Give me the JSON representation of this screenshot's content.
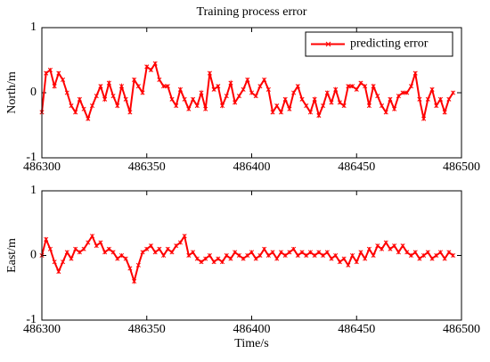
{
  "chart_data": [
    {
      "type": "line",
      "title": "Training process error",
      "ylabel": "North/m",
      "legend": "northeast",
      "xlim": [
        486300,
        486500
      ],
      "xticks": [
        486300,
        486350,
        486400,
        486450,
        486500
      ],
      "ylim": [
        -1,
        1
      ],
      "yticks": [
        -1,
        0,
        1
      ],
      "x": [
        486300,
        486302,
        486304,
        486306,
        486308,
        486310,
        486312,
        486314,
        486316,
        486318,
        486320,
        486322,
        486324,
        486326,
        486328,
        486330,
        486332,
        486334,
        486336,
        486338,
        486340,
        486342,
        486344,
        486346,
        486348,
        486350,
        486352,
        486354,
        486356,
        486358,
        486360,
        486362,
        486364,
        486366,
        486368,
        486370,
        486372,
        486374,
        486376,
        486378,
        486380,
        486382,
        486384,
        486386,
        486388,
        486390,
        486392,
        486394,
        486396,
        486398,
        486400,
        486402,
        486404,
        486406,
        486408,
        486410,
        486412,
        486414,
        486416,
        486418,
        486420,
        486422,
        486424,
        486426,
        486428,
        486430,
        486432,
        486434,
        486436,
        486438,
        486440,
        486442,
        486444,
        486446,
        486448,
        486450,
        486452,
        486454,
        486456,
        486458,
        486460,
        486462,
        486464,
        486466,
        486468,
        486470,
        486472,
        486474,
        486476,
        486478,
        486480,
        486482,
        486484,
        486486,
        486488,
        486490,
        486492,
        486494,
        486496
      ],
      "series": [
        {
          "name": "predicting error",
          "color": "#ff0000",
          "values": [
            -0.3,
            0.3,
            0.35,
            0.1,
            0.3,
            0.2,
            0.0,
            -0.2,
            -0.3,
            -0.1,
            -0.25,
            -0.4,
            -0.2,
            -0.05,
            0.1,
            -0.1,
            0.15,
            -0.05,
            -0.2,
            0.1,
            -0.1,
            -0.3,
            0.2,
            0.1,
            0.0,
            0.4,
            0.35,
            0.45,
            0.2,
            0.1,
            0.1,
            -0.1,
            -0.2,
            0.05,
            -0.1,
            -0.25,
            -0.1,
            -0.2,
            0.0,
            -0.25,
            0.3,
            0.05,
            0.1,
            -0.2,
            -0.05,
            0.15,
            -0.15,
            -0.05,
            0.05,
            0.2,
            0.0,
            -0.05,
            0.1,
            0.2,
            0.05,
            -0.3,
            -0.2,
            -0.3,
            -0.1,
            -0.25,
            0.0,
            0.1,
            -0.1,
            -0.2,
            -0.3,
            -0.1,
            -0.35,
            -0.2,
            0.0,
            -0.15,
            0.05,
            -0.15,
            -0.2,
            0.1,
            0.1,
            0.05,
            0.15,
            0.1,
            -0.2,
            0.1,
            -0.05,
            -0.2,
            -0.3,
            -0.1,
            -0.25,
            -0.05,
            0.0,
            0.0,
            0.1,
            0.3,
            -0.1,
            -0.4,
            -0.1,
            0.05,
            -0.2,
            -0.1,
            -0.3,
            -0.1,
            0.0
          ]
        }
      ]
    },
    {
      "type": "line",
      "ylabel": "East/m",
      "xlabel": "Time/s",
      "xlim": [
        486300,
        486500
      ],
      "xticks": [
        486300,
        486350,
        486400,
        486450,
        486500
      ],
      "ylim": [
        -1,
        1
      ],
      "yticks": [
        -1,
        0,
        1
      ],
      "x": [
        486300,
        486302,
        486304,
        486306,
        486308,
        486310,
        486312,
        486314,
        486316,
        486318,
        486320,
        486322,
        486324,
        486326,
        486328,
        486330,
        486332,
        486334,
        486336,
        486338,
        486340,
        486342,
        486344,
        486346,
        486348,
        486350,
        486352,
        486354,
        486356,
        486358,
        486360,
        486362,
        486364,
        486366,
        486368,
        486370,
        486372,
        486374,
        486376,
        486378,
        486380,
        486382,
        486384,
        486386,
        486388,
        486390,
        486392,
        486394,
        486396,
        486398,
        486400,
        486402,
        486404,
        486406,
        486408,
        486410,
        486412,
        486414,
        486416,
        486418,
        486420,
        486422,
        486424,
        486426,
        486428,
        486430,
        486432,
        486434,
        486436,
        486438,
        486440,
        486442,
        486444,
        486446,
        486448,
        486450,
        486452,
        486454,
        486456,
        486458,
        486460,
        486462,
        486464,
        486466,
        486468,
        486470,
        486472,
        486474,
        486476,
        486478,
        486480,
        486482,
        486484,
        486486,
        486488,
        486490,
        486492,
        486494,
        486496
      ],
      "series": [
        {
          "color": "#ff0000",
          "values": [
            0.0,
            0.25,
            0.1,
            -0.1,
            -0.25,
            -0.1,
            0.05,
            -0.05,
            0.1,
            0.05,
            0.1,
            0.2,
            0.3,
            0.15,
            0.2,
            0.05,
            0.1,
            0.05,
            -0.05,
            0.0,
            -0.05,
            -0.2,
            -0.4,
            -0.15,
            0.05,
            0.1,
            0.15,
            0.05,
            0.1,
            0.0,
            0.1,
            0.05,
            0.15,
            0.2,
            0.3,
            0.0,
            0.05,
            -0.05,
            -0.1,
            -0.05,
            0.0,
            -0.1,
            -0.05,
            -0.1,
            0.0,
            -0.05,
            0.05,
            0.0,
            -0.05,
            0.0,
            0.05,
            -0.05,
            0.0,
            0.1,
            0.0,
            0.05,
            -0.05,
            0.05,
            0.0,
            0.05,
            0.1,
            0.0,
            0.05,
            0.0,
            0.05,
            0.0,
            0.05,
            0.0,
            0.05,
            -0.05,
            0.0,
            -0.1,
            -0.05,
            -0.15,
            0.0,
            -0.1,
            0.05,
            -0.05,
            0.1,
            0.0,
            0.15,
            0.1,
            0.2,
            0.1,
            0.15,
            0.05,
            0.15,
            0.05,
            0.0,
            0.05,
            -0.05,
            0.0,
            0.05,
            -0.05,
            0.0,
            0.05,
            -0.05,
            0.05,
            0.0
          ]
        }
      ]
    }
  ]
}
